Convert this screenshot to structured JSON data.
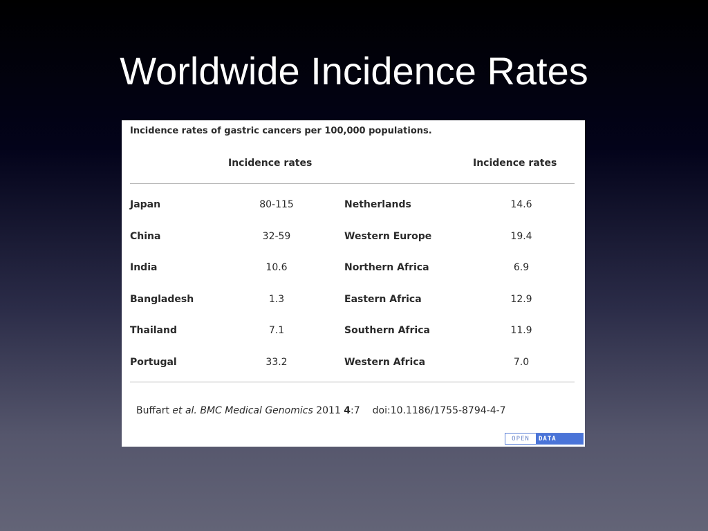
{
  "slide": {
    "title": "Worldwide Incidence Rates"
  },
  "table": {
    "caption": "Incidence rates of gastric cancers per 100,000 populations.",
    "headers": {
      "left_rate": "Incidence rates",
      "right_rate": "Incidence rates"
    },
    "left_rows": [
      {
        "country": "Japan",
        "rate": "80-115"
      },
      {
        "country": "China",
        "rate": "32-59"
      },
      {
        "country": "India",
        "rate": "10.6"
      },
      {
        "country": "Bangladesh",
        "rate": "1.3"
      },
      {
        "country": "Thailand",
        "rate": "7.1"
      },
      {
        "country": "Portugal",
        "rate": "33.2"
      }
    ],
    "right_rows": [
      {
        "country": "Netherlands",
        "rate": "14.6"
      },
      {
        "country": "Western Europe",
        "rate": "19.4"
      },
      {
        "country": "Northern Africa",
        "rate": "6.9"
      },
      {
        "country": "Eastern Africa",
        "rate": "12.9"
      },
      {
        "country": "Southern Africa",
        "rate": "11.9"
      },
      {
        "country": "Western Africa",
        "rate": "7.0"
      }
    ],
    "citation": {
      "author": "Buffart ",
      "etal": "et al.",
      "journal": " BMC Medical Genomics",
      "year": " 2011 ",
      "volume": "4",
      "pages": ":7",
      "doi": "doi:10.1186/1755-8794-4-7"
    },
    "badge": {
      "open": "OPEN",
      "data": "DATA",
      "open_color": "#6b86c9",
      "data_color": "#4a74d8"
    }
  }
}
